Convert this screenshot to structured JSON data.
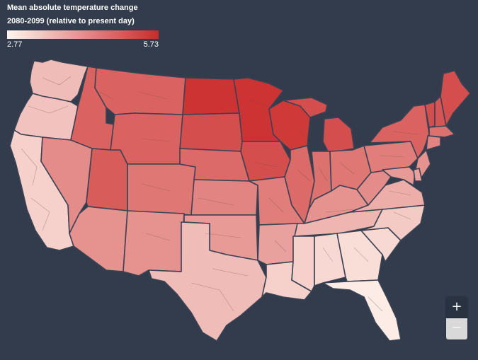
{
  "legend": {
    "title_line1": "Mean absolute temperature change",
    "title_line2": "2080-2099 (relative to present day)",
    "min_label": "2.77",
    "max_label": "5.73",
    "min_value": 2.77,
    "max_value": 5.73,
    "color_low": "#fff5ee",
    "color_high": "#cb2a2a"
  },
  "map": {
    "background": "#323c4c",
    "border_color": "#3a4354",
    "region_values": [
      {
        "name": "Washington",
        "value": 3.6
      },
      {
        "name": "Oregon",
        "value": 3.5
      },
      {
        "name": "California",
        "value": 3.3
      },
      {
        "name": "Idaho",
        "value": 4.9
      },
      {
        "name": "Nevada",
        "value": 4.3
      },
      {
        "name": "Utah",
        "value": 5.0
      },
      {
        "name": "Arizona",
        "value": 4.2
      },
      {
        "name": "Montana",
        "value": 4.9
      },
      {
        "name": "Wyoming",
        "value": 4.9
      },
      {
        "name": "Colorado",
        "value": 4.6
      },
      {
        "name": "New Mexico",
        "value": 4.2
      },
      {
        "name": "North Dakota",
        "value": 5.6
      },
      {
        "name": "South Dakota",
        "value": 5.2
      },
      {
        "name": "Nebraska",
        "value": 4.8
      },
      {
        "name": "Kansas",
        "value": 4.4
      },
      {
        "name": "Oklahoma",
        "value": 4.1
      },
      {
        "name": "Texas",
        "value": 3.6
      },
      {
        "name": "Minnesota",
        "value": 5.6
      },
      {
        "name": "Iowa",
        "value": 5.2
      },
      {
        "name": "Missouri",
        "value": 4.5
      },
      {
        "name": "Arkansas",
        "value": 4.0
      },
      {
        "name": "Louisiana",
        "value": 3.3
      },
      {
        "name": "Wisconsin",
        "value": 5.5
      },
      {
        "name": "Illinois",
        "value": 4.8
      },
      {
        "name": "Michigan",
        "value": 5.2
      },
      {
        "name": "Indiana",
        "value": 4.7
      },
      {
        "name": "Ohio",
        "value": 4.6
      },
      {
        "name": "Kentucky",
        "value": 4.2
      },
      {
        "name": "Tennessee",
        "value": 3.7
      },
      {
        "name": "Mississippi",
        "value": 3.3
      },
      {
        "name": "Alabama",
        "value": 3.2
      },
      {
        "name": "Georgia",
        "value": 3.1
      },
      {
        "name": "Florida",
        "value": 2.9
      },
      {
        "name": "South Carolina",
        "value": 3.2
      },
      {
        "name": "North Carolina",
        "value": 3.4
      },
      {
        "name": "Virginia",
        "value": 3.8
      },
      {
        "name": "West Virginia",
        "value": 4.3
      },
      {
        "name": "Pennsylvania",
        "value": 4.5
      },
      {
        "name": "New York",
        "value": 4.9
      },
      {
        "name": "Vermont",
        "value": 5.2
      },
      {
        "name": "New Hampshire",
        "value": 5.1
      },
      {
        "name": "Maine",
        "value": 5.2
      },
      {
        "name": "Massachusetts",
        "value": 4.7
      },
      {
        "name": "Connecticut",
        "value": 4.4
      },
      {
        "name": "New Jersey",
        "value": 4.2
      },
      {
        "name": "Maryland",
        "value": 4.1
      },
      {
        "name": "Delaware",
        "value": 4.0
      }
    ]
  },
  "zoom": {
    "in_label": "+",
    "out_label": "−"
  }
}
